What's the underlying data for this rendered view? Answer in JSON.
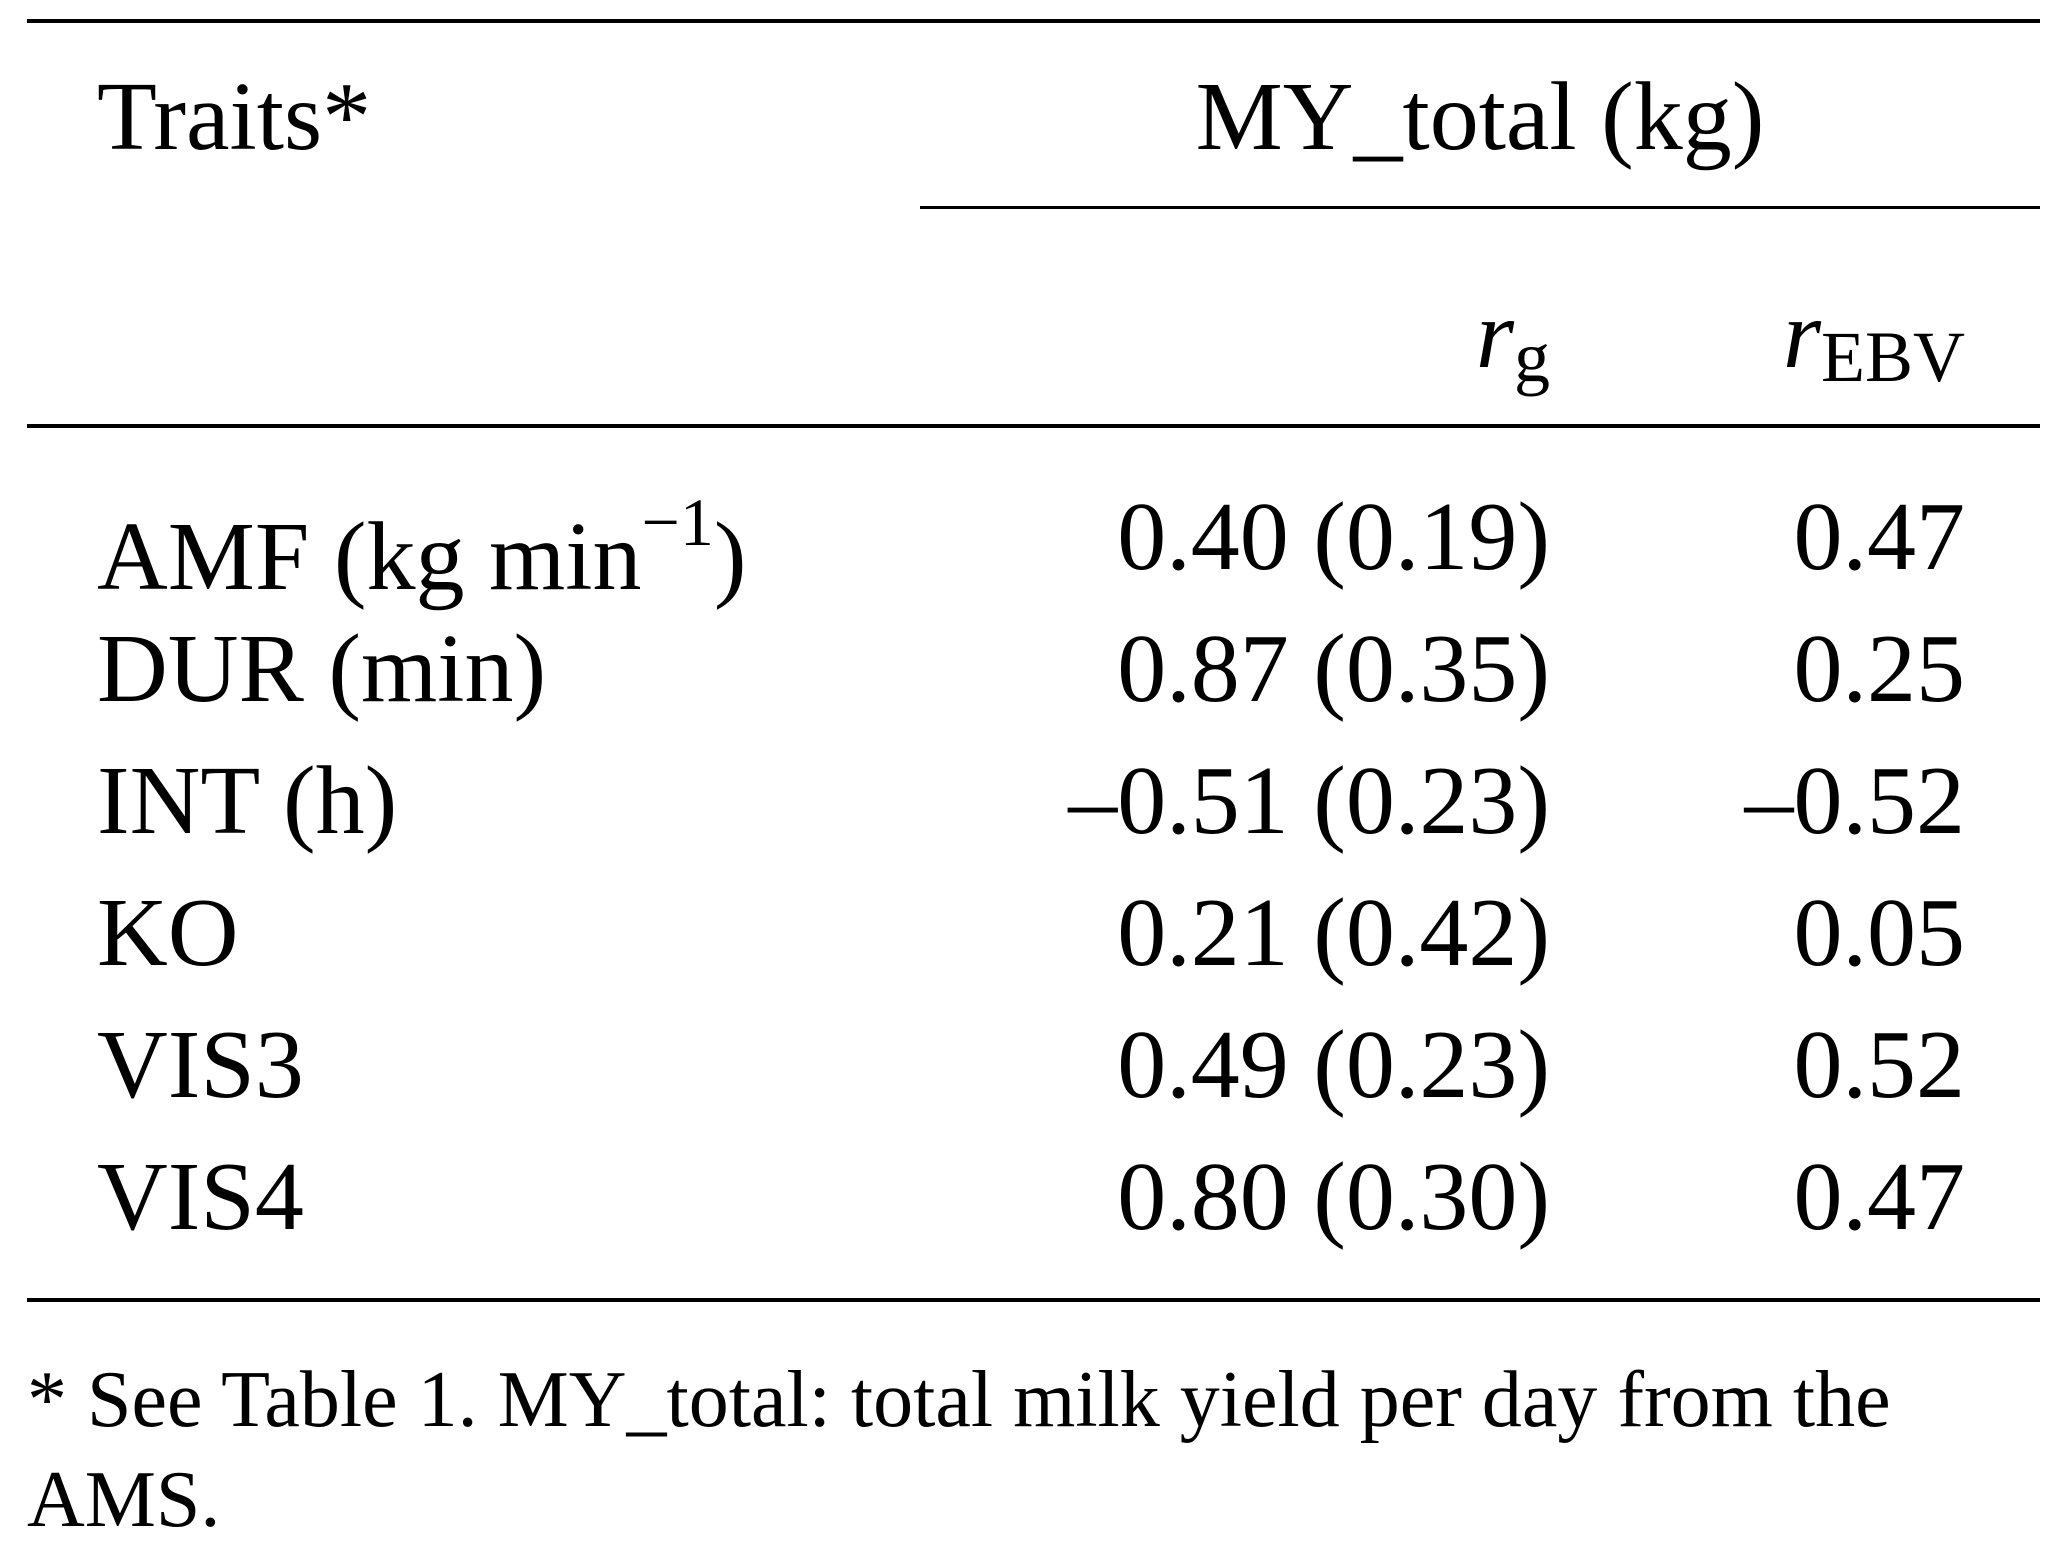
{
  "table": {
    "header": {
      "traits": "Traits*",
      "group": "MY_total (kg)",
      "rg_base": "r",
      "rg_sub": "g",
      "rebv_base": "r",
      "rebv_sub": "EBV"
    },
    "rows": [
      {
        "trait": "AMF (kg min",
        "trait_sup": "−1",
        "trait_close": ")",
        "rg": "0.40 (0.19)",
        "rebv": "0.47"
      },
      {
        "trait": "DUR (min)",
        "trait_sup": "",
        "trait_close": "",
        "rg": "0.87 (0.35)",
        "rebv": "0.25"
      },
      {
        "trait": "INT (h)",
        "trait_sup": "",
        "trait_close": "",
        "rg": "–0.51 (0.23)",
        "rebv": "–0.52"
      },
      {
        "trait": "KO",
        "trait_sup": "",
        "trait_close": "",
        "rg": "0.21 (0.42)",
        "rebv": "0.05"
      },
      {
        "trait": "VIS3",
        "trait_sup": "",
        "trait_close": "",
        "rg": "0.49 (0.23)",
        "rebv": "0.52"
      },
      {
        "trait": "VIS4",
        "trait_sup": "",
        "trait_close": "",
        "rg": "0.80 (0.30)",
        "rebv": "0.47"
      }
    ],
    "footnote": "* See Table 1. MY_total: total milk yield per day from the AMS."
  }
}
